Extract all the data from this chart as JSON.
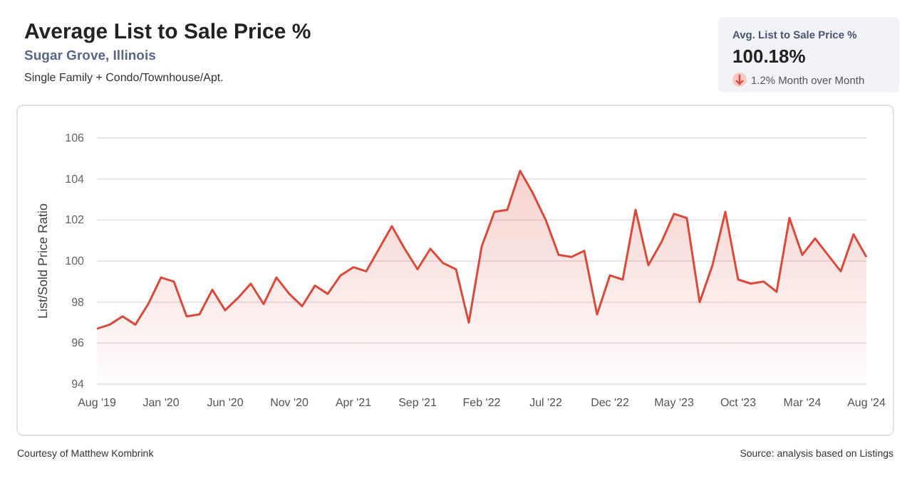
{
  "chart_data": {
    "type": "area",
    "title": "Average List to Sale Price %",
    "subtitle": "Sugar Grove, Illinois",
    "ylabel": "List/Sold Price Ratio",
    "categories": [
      "Aug '19",
      null,
      null,
      null,
      null,
      "Jan '20",
      null,
      null,
      null,
      null,
      "Jun '20",
      null,
      null,
      null,
      null,
      "Nov '20",
      null,
      null,
      null,
      null,
      "Apr '21",
      null,
      null,
      null,
      null,
      "Sep '21",
      null,
      null,
      null,
      null,
      "Feb '22",
      null,
      null,
      null,
      null,
      "Jul '22",
      null,
      null,
      null,
      null,
      "Dec '22",
      null,
      null,
      null,
      null,
      "May '23",
      null,
      null,
      null,
      null,
      "Oct '23",
      null,
      null,
      null,
      null,
      "Mar '24",
      null,
      null,
      null,
      null,
      "Aug '24"
    ],
    "values": [
      96.7,
      96.9,
      97.3,
      96.9,
      97.9,
      99.2,
      99.0,
      97.3,
      97.4,
      98.6,
      97.6,
      98.2,
      98.9,
      97.9,
      99.2,
      98.4,
      97.8,
      98.8,
      98.4,
      99.3,
      99.7,
      99.5,
      100.6,
      101.7,
      100.6,
      99.6,
      100.6,
      99.9,
      99.6,
      97.0,
      100.7,
      102.4,
      102.5,
      104.4,
      103.3,
      102.0,
      100.3,
      100.2,
      100.5,
      97.4,
      99.3,
      99.1,
      102.5,
      99.8,
      100.9,
      102.3,
      102.1,
      98.0,
      99.8,
      102.4,
      99.1,
      98.9,
      99.0,
      98.5,
      102.1,
      100.3,
      101.1,
      100.3,
      99.5,
      101.3,
      100.2
    ],
    "color": "#d94a3b",
    "ylim": [
      94,
      106
    ],
    "yticks": [
      94,
      96,
      98,
      100,
      102,
      104,
      106
    ],
    "grid": "y",
    "marker": "none",
    "line_style": "solid",
    "annotations": [
      "Single Family + Condo/Townhouse/Apt.",
      "Avg. List to Sale Price %",
      "100.18%",
      "1.2% Month over Month",
      "Courtesy of Matthew Kombrink",
      "Source: analysis based on Listings"
    ]
  }
}
